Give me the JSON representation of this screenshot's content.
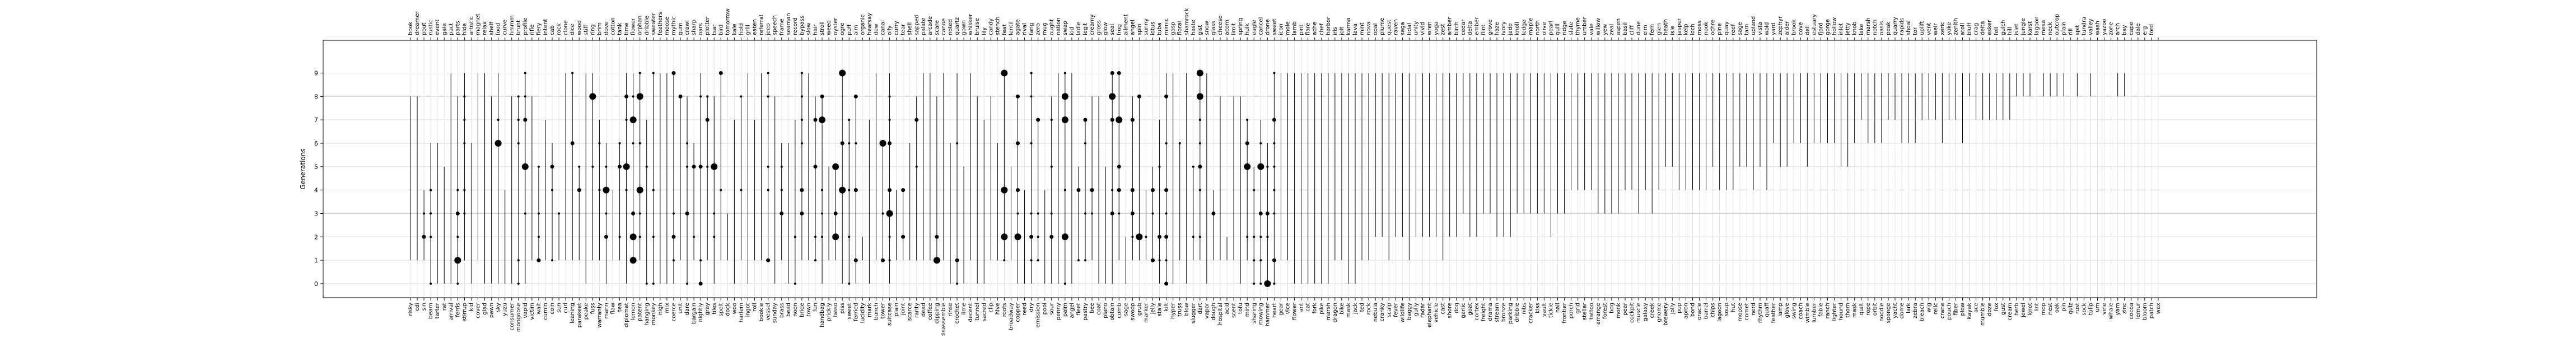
{
  "chart_data": {
    "type": "scatter",
    "title": "",
    "xlabel": "",
    "ylabel": "Generations",
    "ylim": [
      -0.6,
      10.4
    ],
    "yticks": [
      0,
      1,
      2,
      3,
      4,
      5,
      6,
      7,
      8,
      9
    ],
    "grid": true,
    "legend": "none",
    "bottom_words": [
      "risky",
      "cdi",
      "sin",
      "bearn",
      "tarter",
      "rat",
      "arrival",
      "ferris",
      "stirrup",
      "kid",
      "cover",
      "glad",
      "pawn",
      "sky",
      "yuzu",
      "consumer",
      "mongoose",
      "vapid",
      "victim",
      "wait",
      "cumin",
      "coin",
      "sun",
      "curl",
      "leaning",
      "parakeet",
      "peake",
      "fuss",
      "warranty",
      "mann",
      "flaw",
      "tea",
      "diplomat",
      "lemon",
      "patent",
      "hanging",
      "monkey",
      "nigh",
      "mix",
      "coerce",
      "unit",
      "dare",
      "bargain",
      "nightly",
      "gray",
      "tiles",
      "spelt",
      "dock",
      "woo",
      "harlem",
      "ingot",
      "roll",
      "bookie",
      "vessel",
      "sunday",
      "brass",
      "bead",
      "noon",
      "bride",
      "town",
      "fun",
      "handbag",
      "prickly",
      "lasso",
      "piss",
      "sweet",
      "ferried",
      "lucidity",
      "mark",
      "bunch",
      "tower",
      "suitcase",
      "plain",
      "joint",
      "scarce",
      "rarity",
      "dead",
      "coffee",
      "dipping",
      "disassemble",
      "rinse",
      "crochet",
      "lime",
      "decent",
      "tunnel",
      "sacred",
      "clip",
      "hive",
      "roots",
      "broadway",
      "copper",
      "reed",
      "dry",
      "emission",
      "pool",
      "sour",
      "penny",
      "palm",
      "angel",
      "fleet",
      "pastry",
      "bee",
      "coat",
      "piano",
      "obtain",
      "comb",
      "sage",
      "swoop",
      "grub",
      "marker",
      "jelly",
      "stale",
      "kilt",
      "hyper",
      "truss",
      "blow",
      "slugger",
      "dart",
      "vapor",
      "dough",
      "hospital",
      "acid",
      "scent",
      "tofu",
      "mind",
      "sharing",
      "mowing",
      "hammer",
      "heart",
      "gear",
      "vice",
      "flower",
      "ant",
      "cat",
      "fork",
      "pike",
      "marsh",
      "dragon",
      "bike",
      "mask",
      "jack",
      "ted",
      "rock",
      "nebula",
      "cranky",
      "scalp",
      "fever",
      "wildlife",
      "baggy",
      "gully",
      "radar",
      "elephant",
      "vehicle",
      "cast",
      "shore",
      "dog",
      "garlic",
      "goat",
      "cortex",
      "freight",
      "drama",
      "stream",
      "bronze",
      "parking",
      "dribble",
      "nibs",
      "cracker",
      "kiss",
      "vault",
      "tickle",
      "nail",
      "frontier",
      "porch",
      "grid",
      "stellar",
      "tattoo",
      "arrange",
      "forest",
      "bog",
      "monk",
      "pear",
      "cockpit",
      "muscle",
      "galaxy",
      "creek",
      "gnome",
      "brewery",
      "jolly",
      "pup",
      "apron",
      "bond",
      "oracle",
      "barrel",
      "chips",
      "lagoon",
      "soup",
      "hut",
      "moose",
      "comet",
      "nerd",
      "rhythm",
      "quaff",
      "feather",
      "lamp",
      "glove",
      "swing",
      "coach",
      "wimble",
      "lumber",
      "fable",
      "ranch",
      "lighter",
      "hound",
      "thorn",
      "mask",
      "quilt",
      "rope",
      "orbit",
      "noodle",
      "sponge",
      "yacht",
      "dome",
      "lark",
      "zebra",
      "bleach",
      "wig",
      "relic",
      "crane",
      "pouch",
      "fiber",
      "plow",
      "kayak",
      "ace",
      "mumble",
      "doze",
      "fox",
      "gust",
      "cream",
      "herb",
      "jewel",
      "knot",
      "lint",
      "mop",
      "nest",
      "oak",
      "pin",
      "quiz",
      "rust",
      "sock",
      "tulip",
      "urn",
      "vine",
      "whale",
      "yarn",
      "zinc",
      "cocoa",
      "lemur",
      "bloom",
      "patch",
      "wax"
    ],
    "top_words": [
      "book",
      "dreamer",
      "pout",
      "rustic",
      "event",
      "gale",
      "pact",
      "parts",
      "hide",
      "artistic",
      "magnet",
      "relax",
      "shelf",
      "food",
      "curve",
      "hmmm",
      "brunt",
      "profile",
      "rifle",
      "fiery",
      "intent",
      "cab",
      "rock",
      "clone",
      "dice",
      "wood",
      "stiff",
      "ring",
      "brim",
      "dove",
      "cotton",
      "tank",
      "time",
      "flower",
      "orphan",
      "dribble",
      "sweater",
      "feathers",
      "moose",
      "mythic",
      "gum",
      "crawl",
      "sharp",
      "oars",
      "plotter",
      "tsar",
      "bird",
      "tomorrow",
      "kale",
      "hold",
      "grill",
      "eaten",
      "referral",
      "jeep",
      "speech",
      "frame",
      "seaman",
      "record",
      "bypass",
      "slow",
      "hair",
      "stroll",
      "weed",
      "oyster",
      "ogre",
      "puff",
      "aim",
      "organic",
      "hearsay",
      "dew",
      "canal",
      "oily",
      "curry",
      "tear",
      "shell",
      "sapped",
      "palate",
      "arcade",
      "scare",
      "canoe",
      "noted",
      "quartz",
      "gown",
      "whisker",
      "bruise",
      "lily",
      "candy",
      "stench",
      "feat",
      "lentil",
      "agate",
      "rival",
      "fang",
      "zero",
      "mug",
      "ought",
      "nation",
      "swap",
      "kid",
      "ladle",
      "legit",
      "creamy",
      "gross",
      "glow",
      "seal",
      "frog",
      "ailment",
      "angel",
      "spin",
      "sunny",
      "lotus",
      "tuba",
      "mimic",
      "gasp",
      "floral",
      "shamrock",
      "haste",
      "gist",
      "snow",
      "glass",
      "cheese",
      "acorn",
      "limit",
      "spring",
      "hulk",
      "eagle",
      "cancel",
      "drone",
      "sweet",
      "icon",
      "mole",
      "lamb",
      "pint",
      "flare",
      "ache",
      "chef",
      "harbor",
      "iris",
      "jolt",
      "karma",
      "lava",
      "mint",
      "nova",
      "opal",
      "plume",
      "quest",
      "raven",
      "saga",
      "tidal",
      "unity",
      "vivid",
      "wren",
      "yoga",
      "zest",
      "amber",
      "birch",
      "cedar",
      "delta",
      "ember",
      "flint",
      "grove",
      "haze",
      "ivory",
      "jade",
      "knoll",
      "ledge",
      "maple",
      "north",
      "olive",
      "pearl",
      "quill",
      "ridge",
      "slate",
      "thyme",
      "umber",
      "vale",
      "willow",
      "yew",
      "zeal",
      "aspen",
      "basil",
      "cliff",
      "dune",
      "elm",
      "fern",
      "glen",
      "heath",
      "isle",
      "jasper",
      "kelp",
      "loch",
      "moss",
      "nook",
      "ochre",
      "pine",
      "quay",
      "reef",
      "sage",
      "tarn",
      "upland",
      "vista",
      "wold",
      "yard",
      "zephyr",
      "alder",
      "brook",
      "cove",
      "dell",
      "estuary",
      "fjord",
      "gorge",
      "hollow",
      "inlet",
      "jetty",
      "knob",
      "lake",
      "marsh",
      "notch",
      "oasis",
      "peak",
      "quarry",
      "rapids",
      "shoal",
      "tor",
      "uplift",
      "vent",
      "weir",
      "xeric",
      "yoke",
      "zenith",
      "atoll",
      "bluff",
      "crag",
      "delta",
      "esker",
      "fell",
      "gulch",
      "hill",
      "islet",
      "jungle",
      "karst",
      "lagoon",
      "mesa",
      "neck",
      "outcrop",
      "plain",
      "rill",
      "spit",
      "tundra",
      "valley",
      "wash",
      "yazoo",
      "zone",
      "arch",
      "bay",
      "cape",
      "dale",
      "erg",
      "ford"
    ]
  }
}
